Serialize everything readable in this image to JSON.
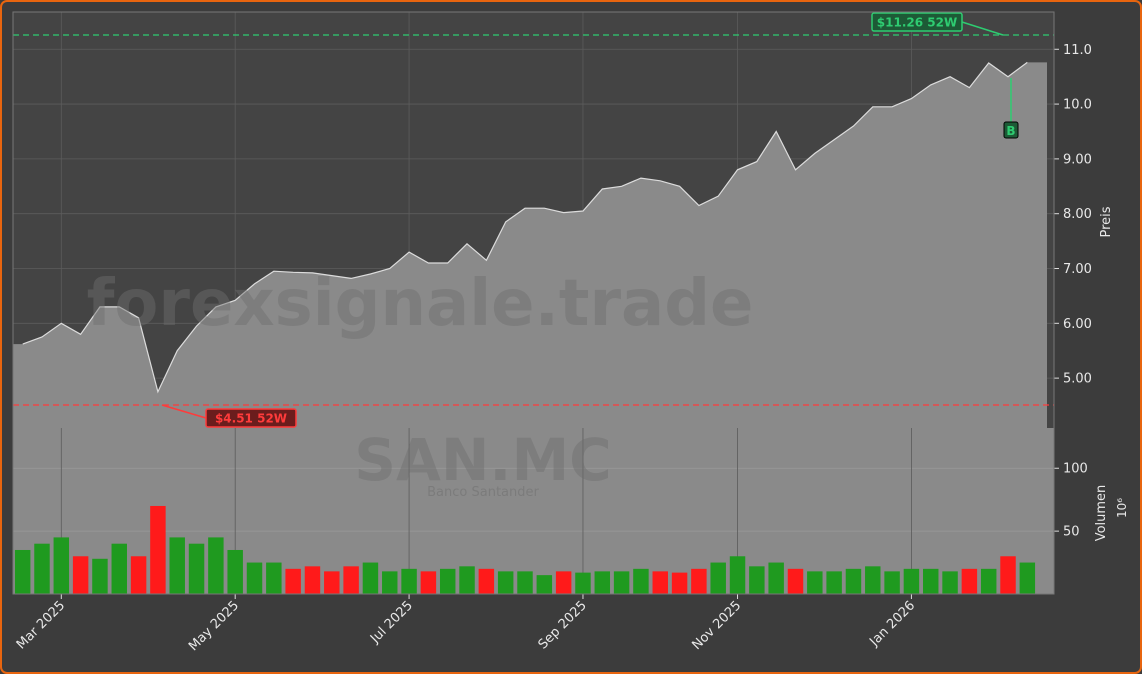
{
  "chart_data": {
    "type": "area",
    "title": "SAN.MC",
    "subtitle": "Banco Santander",
    "watermark": "forexsignale.trade",
    "y_label": "Preis",
    "categories": [
      null,
      null,
      "Mar 2025",
      null,
      null,
      null,
      null,
      null,
      null,
      null,
      null,
      "May 2025",
      null,
      null,
      null,
      null,
      null,
      null,
      null,
      null,
      "Jul 2025",
      null,
      null,
      null,
      null,
      null,
      null,
      null,
      null,
      "Sep 2025",
      null,
      null,
      null,
      null,
      null,
      null,
      null,
      "Nov 2025",
      null,
      null,
      null,
      null,
      null,
      null,
      null,
      null,
      "Jan 2026",
      null,
      null,
      null,
      null,
      null,
      null
    ],
    "series": [
      {
        "name": "SAN.MC",
        "color": "#8a8a8a",
        "values": [
          5.62,
          5.75,
          6.0,
          5.8,
          6.3,
          6.3,
          6.1,
          4.75,
          5.5,
          5.95,
          6.3,
          6.42,
          6.72,
          6.95,
          6.93,
          6.92,
          6.87,
          6.82,
          6.9,
          7.0,
          7.3,
          7.1,
          7.1,
          7.45,
          7.15,
          7.85,
          8.1,
          8.1,
          8.02,
          8.05,
          8.45,
          8.5,
          8.65,
          8.6,
          8.5,
          8.15,
          8.32,
          8.8,
          8.95,
          9.5,
          8.8,
          9.1,
          9.35,
          9.6,
          9.95,
          9.95,
          10.1,
          10.35,
          10.5,
          10.3,
          10.75,
          10.5,
          10.76
        ]
      }
    ],
    "ylim": [
      4.09,
      11.68
    ],
    "yticks": [
      {
        "value": 5,
        "label": "5.00"
      },
      {
        "value": 6,
        "label": "6.00"
      },
      {
        "value": 7,
        "label": "7.00"
      },
      {
        "value": 8,
        "label": "8.00"
      },
      {
        "value": 9,
        "label": "9.00"
      },
      {
        "value": 10,
        "label": "10.0"
      },
      {
        "value": 11,
        "label": "11.0"
      }
    ],
    "grid": true,
    "annotations": [
      {
        "text": "$11.26 52W",
        "value": 11.26,
        "color": "#2ecc71"
      },
      {
        "text": "$4.51 52W",
        "value": 4.51,
        "color": "#ff3b3b"
      }
    ],
    "signal": "B",
    "volume": {
      "label": "Volumen",
      "multiplier": "10⁶",
      "up_color": "#1f9a1f",
      "down_color": "#ff1a1a",
      "values": [
        35,
        40,
        45,
        30,
        28,
        40,
        30,
        70,
        45,
        40,
        45,
        35,
        25,
        25,
        20,
        22,
        18,
        22,
        25,
        18,
        20,
        18,
        20,
        22,
        20,
        18,
        18,
        15,
        18,
        17,
        18,
        18,
        20,
        18,
        17,
        20,
        25,
        30,
        22,
        25,
        20,
        18,
        18,
        20,
        22,
        18,
        20,
        20,
        18,
        20,
        20,
        30,
        25
      ],
      "ylim": [
        0,
        132
      ],
      "yticks": [
        50,
        100
      ]
    }
  }
}
